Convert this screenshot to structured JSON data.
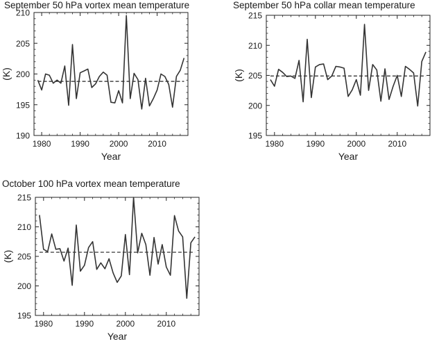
{
  "chart_data": [
    {
      "type": "line",
      "title": "September 50 hPa vortex mean temperature",
      "xlabel": "Year",
      "ylabel": "(K)",
      "xlim": [
        1978,
        2018
      ],
      "ylim": [
        190,
        210
      ],
      "xticks": [
        1980,
        1990,
        2000,
        2010
      ],
      "yticks": [
        190,
        195,
        200,
        205,
        210
      ],
      "grid": false,
      "mean": 198.8,
      "x": [
        1979,
        1980,
        1981,
        1982,
        1983,
        1984,
        1985,
        1986,
        1987,
        1988,
        1989,
        1990,
        1991,
        1992,
        1993,
        1994,
        1995,
        1996,
        1997,
        1998,
        1999,
        2000,
        2001,
        2002,
        2003,
        2004,
        2005,
        2006,
        2007,
        2008,
        2009,
        2010,
        2011,
        2012,
        2013,
        2014,
        2015,
        2016,
        2017
      ],
      "series": [
        {
          "values": [
            199.0,
            197.4,
            200.0,
            199.8,
            198.5,
            199.0,
            198.5,
            201.3,
            194.9,
            204.8,
            196.0,
            200.2,
            200.5,
            200.8,
            197.8,
            198.4,
            199.6,
            200.3,
            199.8,
            195.4,
            195.3,
            197.3,
            195.3,
            209.5,
            196.0,
            200.1,
            199.1,
            194.3,
            199.3,
            194.8,
            196.0,
            197.4,
            200.0,
            199.6,
            198.3,
            194.6,
            199.6,
            200.6,
            202.6
          ]
        }
      ]
    },
    {
      "type": "line",
      "title": "September 50 hPa collar mean temperature",
      "xlabel": "Year",
      "ylabel": "(K)",
      "xlim": [
        1978,
        2018
      ],
      "ylim": [
        195,
        215
      ],
      "xticks": [
        1980,
        1990,
        2000,
        2010
      ],
      "yticks": [
        195,
        200,
        205,
        210,
        215
      ],
      "grid": false,
      "mean": 204.9,
      "x": [
        1979,
        1980,
        1981,
        1982,
        1983,
        1984,
        1985,
        1986,
        1987,
        1988,
        1989,
        1990,
        1991,
        1992,
        1993,
        1994,
        1995,
        1996,
        1997,
        1998,
        1999,
        2000,
        2001,
        2002,
        2003,
        2004,
        2005,
        2006,
        2007,
        2008,
        2009,
        2010,
        2011,
        2012,
        2013,
        2014,
        2015,
        2016,
        2017
      ],
      "series": [
        {
          "values": [
            204.3,
            203.2,
            206.0,
            205.5,
            204.8,
            204.9,
            204.5,
            207.5,
            200.6,
            211.0,
            201.3,
            206.4,
            206.8,
            206.9,
            204.3,
            204.9,
            206.5,
            206.4,
            206.2,
            201.5,
            202.6,
            204.3,
            201.7,
            213.5,
            202.5,
            206.8,
            205.9,
            200.7,
            206.1,
            201.0,
            203.2,
            205.0,
            201.5,
            206.5,
            206.0,
            205.4,
            199.9,
            207.3,
            208.9
          ]
        }
      ]
    },
    {
      "type": "line",
      "title": "October 100 hPa vortex mean temperature",
      "xlabel": "Year",
      "ylabel": "(K)",
      "xlim": [
        1978,
        2018
      ],
      "ylim": [
        195,
        215
      ],
      "xticks": [
        1980,
        1990,
        2000,
        2010
      ],
      "yticks": [
        195,
        200,
        205,
        210,
        215
      ],
      "grid": false,
      "mean": 205.7,
      "x": [
        1979,
        1980,
        1981,
        1982,
        1983,
        1984,
        1985,
        1986,
        1987,
        1988,
        1989,
        1990,
        1991,
        1992,
        1993,
        1994,
        1995,
        1996,
        1997,
        1998,
        1999,
        2000,
        2001,
        2002,
        2003,
        2004,
        2005,
        2006,
        2007,
        2008,
        2009,
        2010,
        2011,
        2012,
        2013,
        2014,
        2015,
        2016,
        2017
      ],
      "series": [
        {
          "values": [
            212.0,
            206.2,
            205.8,
            208.8,
            206.2,
            206.3,
            204.2,
            206.4,
            200.1,
            210.3,
            202.5,
            203.5,
            206.5,
            207.5,
            202.8,
            203.9,
            202.9,
            204.6,
            202.2,
            200.6,
            201.7,
            208.7,
            201.9,
            215.0,
            205.6,
            208.9,
            207.0,
            201.8,
            208.2,
            203.7,
            207.0,
            203.2,
            201.8,
            211.9,
            209.3,
            208.3,
            197.9,
            207.3,
            208.3
          ]
        }
      ]
    }
  ]
}
